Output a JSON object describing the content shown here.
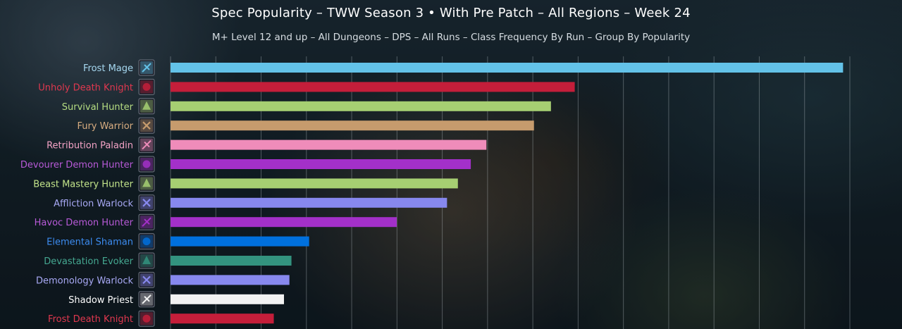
{
  "chart_data": {
    "type": "bar",
    "orientation": "horizontal",
    "title": "Spec Popularity – TWW Season 3 • With Pre Patch – All Regions – Week 24",
    "subtitle": "M+ Level 12 and up – All Dungeons – DPS – All Runs – Class Frequency By Run – Group By Popularity",
    "xlabel": "",
    "ylabel": "",
    "grid": true,
    "legend": "none",
    "xlim": [
      0,
      100
    ],
    "bars": [
      {
        "label": "Frost Mage",
        "value": 99.0,
        "color": "#63c2e8",
        "label_color": "#a6d8f0",
        "icon": "frost-mage-icon"
      },
      {
        "label": "Unholy Death Knight",
        "value": 59.5,
        "color": "#c41e3a",
        "label_color": "#e0384f",
        "icon": "unholy-death-knight-icon"
      },
      {
        "label": "Survival Hunter",
        "value": 56.0,
        "color": "#a6cf72",
        "label_color": "#b6dd82",
        "icon": "survival-hunter-icon"
      },
      {
        "label": "Fury Warrior",
        "value": 53.5,
        "color": "#c69b6d",
        "label_color": "#d8ad80",
        "icon": "fury-warrior-icon"
      },
      {
        "label": "Retribution Paladin",
        "value": 46.5,
        "color": "#ef8cba",
        "label_color": "#f4a3c6",
        "icon": "retribution-paladin-icon"
      },
      {
        "label": "Devourer Demon Hunter",
        "value": 44.2,
        "color": "#a330c9",
        "label_color": "#b85ad8",
        "icon": "devourer-demon-hunter-icon"
      },
      {
        "label": "Beast Mastery Hunter",
        "value": 42.3,
        "color": "#a6cf72",
        "label_color": "#c2e38a",
        "icon": "beast-mastery-hunter-icon"
      },
      {
        "label": "Affliction Warlock",
        "value": 40.7,
        "color": "#8788ee",
        "label_color": "#a8a9f5",
        "icon": "affliction-warlock-icon"
      },
      {
        "label": "Havoc Demon Hunter",
        "value": 33.3,
        "color": "#a330c9",
        "label_color": "#b85ad8",
        "icon": "havoc-demon-hunter-icon"
      },
      {
        "label": "Elemental Shaman",
        "value": 20.4,
        "color": "#0070dd",
        "label_color": "#3c8cf0",
        "icon": "elemental-shaman-icon"
      },
      {
        "label": "Devastation Evoker",
        "value": 17.8,
        "color": "#33937f",
        "label_color": "#45a891",
        "icon": "devastation-evoker-icon"
      },
      {
        "label": "Demonology Warlock",
        "value": 17.5,
        "color": "#8788ee",
        "label_color": "#a8a9f5",
        "icon": "demonology-warlock-icon"
      },
      {
        "label": "Shadow Priest",
        "value": 16.7,
        "color": "#f2f2f2",
        "label_color": "#ffffff",
        "icon": "shadow-priest-icon"
      },
      {
        "label": "Frost Death Knight",
        "value": 15.2,
        "color": "#c41e3a",
        "label_color": "#e0384f",
        "icon": "frost-death-knight-icon"
      }
    ]
  }
}
